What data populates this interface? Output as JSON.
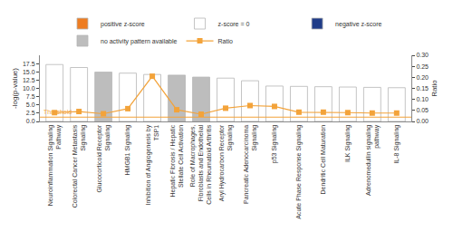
{
  "chart_data": {
    "type": "bar",
    "categories": [
      "Neuroinflammation Signaling Pathway",
      "Colorectal Cancer Metastasis Signaling",
      "Glucocorticoid Receptor Signaling",
      "HMGB1 Signaling",
      "Inhibition of Angiogenesis by TSP1",
      "Hepatic Fibrosis / Hepatic Stellate Cell Activation",
      "Role of Macrophages, Fibroblasts and Endothelial Cells in Rheumatoid Arthritis",
      "Aryl Hydrocarbon Receptor Signaling",
      "Pancreatic Adenocarcinoma Signaling",
      "p53 Signaling",
      "Acute Phase Response Signaling",
      "Dendritic Cell Maturation",
      "ILK Signaling",
      "Adrenomedullin signaling pathway",
      "IL-8 Signaling"
    ],
    "y_label": "-log(p-value)",
    "y2_label": "Ratio",
    "ylim": [
      0,
      20
    ],
    "yticks": [
      {
        "value": 0,
        "label": "0.0"
      },
      2.5,
      {
        "value": 5,
        "label": "5.0"
      },
      7.5,
      {
        "value": 10,
        "label": "10.0"
      },
      12.5,
      {
        "value": 15,
        "label": "15.0"
      },
      17.5
    ],
    "y2lim": [
      0,
      0.3
    ],
    "y2ticks": [
      {
        "value": 0,
        "label": "0.00"
      },
      0.05,
      {
        "value": 0.1,
        "label": "0.10"
      },
      0.15,
      {
        "value": 0.2,
        "label": "0.20"
      },
      0.25,
      {
        "value": 0.3,
        "label": "0.30"
      }
    ],
    "legend": "top",
    "series": [
      {
        "name": "positive z-score",
        "color": "#ee7d22",
        "type": "bar",
        "values": [
          null,
          null,
          null,
          null,
          null,
          null,
          null,
          null,
          null,
          null,
          null,
          null,
          null,
          null,
          null
        ]
      },
      {
        "name": "z-score = 0",
        "color": "#ffffff",
        "type": "bar",
        "values": [
          17.2,
          16.3,
          null,
          14.6,
          14.2,
          null,
          null,
          13.1,
          12.3,
          10.7,
          10.6,
          10.5,
          10.4,
          10.3,
          10.2
        ]
      },
      {
        "name": "negative z-score",
        "color": "#1f3c88",
        "type": "bar",
        "values": [
          null,
          null,
          null,
          null,
          null,
          null,
          null,
          null,
          null,
          null,
          null,
          null,
          null,
          null,
          null
        ]
      },
      {
        "name": "no activity pattern available",
        "color": "#bdbdbd",
        "type": "bar",
        "values": [
          null,
          null,
          14.9,
          null,
          null,
          14.0,
          13.4,
          null,
          null,
          null,
          null,
          null,
          null,
          null,
          null
        ]
      },
      {
        "name": "Ratio",
        "color": "#f3a33a",
        "type": "line",
        "marker": "square",
        "axis": "y2",
        "values": [
          0.04,
          0.045,
          0.035,
          0.058,
          0.205,
          0.053,
          0.033,
          0.06,
          0.072,
          0.068,
          0.042,
          0.042,
          0.04,
          0.038,
          0.038
        ]
      }
    ],
    "annotations": [
      {
        "text": "Threshold",
        "y": 1.3,
        "color": "#f3a33a"
      }
    ]
  }
}
